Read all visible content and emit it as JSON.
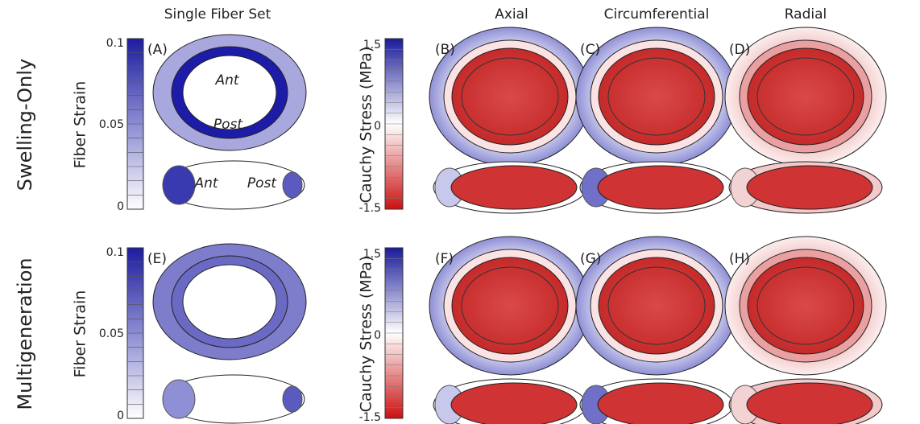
{
  "columns": [
    "Single Fiber Set",
    "Axial",
    "Circumferential",
    "Radial"
  ],
  "rows": [
    {
      "label": "Swelling-Only",
      "strain_label": "Fiber Strain",
      "strain_ticks": [
        "0.1",
        "0.05",
        "0"
      ],
      "stress_label": "Cauchy Stress (MPa)",
      "stress_ticks": [
        "1.5",
        "0",
        "-1.5"
      ],
      "panels": [
        "(A)",
        "(B)",
        "(C)",
        "(D)"
      ],
      "annotations": [
        "Ant",
        "Post",
        "Ant",
        "Post"
      ]
    },
    {
      "label": "Multigeneration",
      "strain_label": "Fiber Strain",
      "strain_ticks": [
        "0.1",
        "0.05",
        "0"
      ],
      "stress_label": "Cauchy Stress (MPa)",
      "stress_ticks": [
        "1.5",
        "0",
        "-1.5"
      ],
      "panels": [
        "(E)",
        "(F)",
        "(G)",
        "(H)"
      ]
    }
  ]
}
